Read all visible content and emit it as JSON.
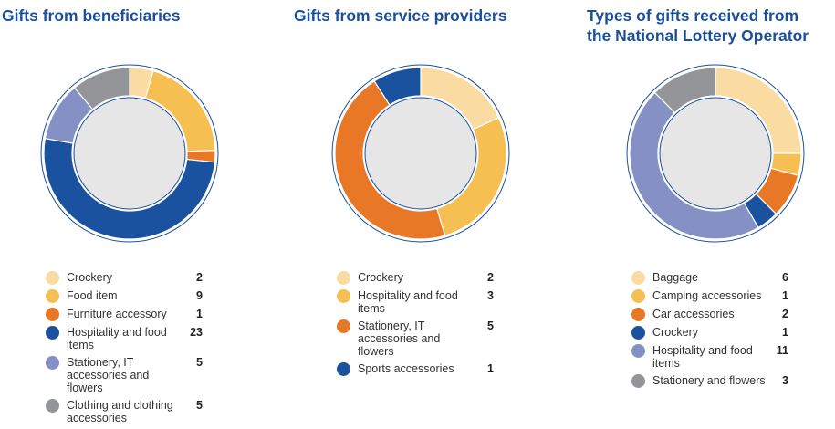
{
  "colors": {
    "title": "#1a4f9c",
    "ring": "#1a4f9c",
    "center": "#e6e6e7",
    "light_yellow": "#fadba1",
    "yellow": "#f6bf52",
    "orange": "#e87726",
    "dark_blue": "#1a52a0",
    "lavender": "#8590c4",
    "grey": "#939598"
  },
  "chart_data": [
    {
      "type": "pie",
      "title": "Gifts from beneficiaries",
      "donut": true,
      "categories": [
        "Crockery",
        "Food item",
        "Furniture accessory",
        "Hospitality and food items",
        "Stationery, IT accessories and flowers",
        "Clothing and clothing accessories"
      ],
      "values": [
        2,
        9,
        1,
        23,
        5,
        5
      ],
      "colors": [
        "#fadba1",
        "#f6bf52",
        "#e87726",
        "#1a52a0",
        "#8590c4",
        "#939598"
      ],
      "legend": {
        "position": "bottom"
      },
      "legend_labels": [
        [
          "Crockery"
        ],
        [
          "Food item"
        ],
        [
          "Furniture accessory"
        ],
        [
          "Hospitality and food",
          "items"
        ],
        [
          "Stationery, IT",
          "accessories and",
          "flowers"
        ],
        [
          "Clothing and clothing",
          "accessories"
        ]
      ]
    },
    {
      "type": "pie",
      "title": "Gifts from service providers",
      "donut": true,
      "categories": [
        "Crockery",
        "Hospitality and food items",
        "Stationery, IT accessories and flowers",
        "Sports accessories"
      ],
      "values": [
        2,
        3,
        5,
        1
      ],
      "colors": [
        "#fadba1",
        "#f6bf52",
        "#e87726",
        "#1a52a0"
      ],
      "legend": {
        "position": "bottom"
      },
      "legend_labels": [
        [
          "Crockery"
        ],
        [
          "Hospitality and food",
          "items"
        ],
        [
          "Stationery, IT",
          "accessories and",
          "flowers"
        ],
        [
          "Sports accessories"
        ]
      ]
    },
    {
      "type": "pie",
      "title": "Types of gifts received from the National Lottery Operator",
      "title_lines": [
        "Types of gifts received from",
        "the National Lottery Operator"
      ],
      "donut": true,
      "categories": [
        "Baggage",
        "Camping accessories",
        "Car accessories",
        "Crockery",
        "Hospitality and food items",
        "Stationery and flowers"
      ],
      "values": [
        6,
        1,
        2,
        1,
        11,
        3
      ],
      "colors": [
        "#fadba1",
        "#f6bf52",
        "#e87726",
        "#1a52a0",
        "#8590c4",
        "#939598"
      ],
      "legend": {
        "position": "bottom"
      },
      "legend_labels": [
        [
          "Baggage"
        ],
        [
          "Camping accessories"
        ],
        [
          "Car accessories"
        ],
        [
          "Crockery"
        ],
        [
          "Hospitality and food",
          "items"
        ],
        [
          "Stationery and flowers"
        ]
      ]
    }
  ]
}
